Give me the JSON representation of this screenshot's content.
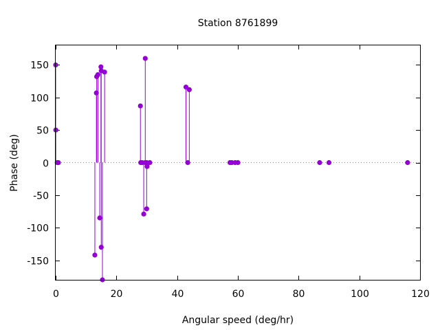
{
  "chart_data": {
    "type": "scatter",
    "style": "impulses-with-points",
    "title": "Station 8761899",
    "xlabel": "Angular speed (deg/hr)",
    "ylabel": "Phase (deg)",
    "xlim": [
      0,
      120
    ],
    "ylim": [
      -180,
      180
    ],
    "xticks": [
      0,
      20,
      40,
      60,
      80,
      100,
      120
    ],
    "yticks": [
      -150,
      -100,
      -50,
      0,
      50,
      100,
      150
    ],
    "grid": false,
    "zero_line": "dotted",
    "color": "#9400d3",
    "points": [
      {
        "x": 0.0,
        "y": 150
      },
      {
        "x": 0.04,
        "y": 50
      },
      {
        "x": 0.5,
        "y": 0
      },
      {
        "x": 0.9,
        "y": 0
      },
      {
        "x": 12.9,
        "y": -142
      },
      {
        "x": 13.4,
        "y": 107
      },
      {
        "x": 13.5,
        "y": 132
      },
      {
        "x": 13.9,
        "y": 135
      },
      {
        "x": 14.5,
        "y": -85
      },
      {
        "x": 14.9,
        "y": 147
      },
      {
        "x": 15.0,
        "y": -130
      },
      {
        "x": 15.0,
        "y": 141
      },
      {
        "x": 15.4,
        "y": -180
      },
      {
        "x": 16.1,
        "y": 139
      },
      {
        "x": 27.9,
        "y": 87
      },
      {
        "x": 28.0,
        "y": 0
      },
      {
        "x": 28.5,
        "y": 0
      },
      {
        "x": 29.0,
        "y": -79
      },
      {
        "x": 29.5,
        "y": 0
      },
      {
        "x": 29.5,
        "y": 160
      },
      {
        "x": 29.96,
        "y": -71
      },
      {
        "x": 30.0,
        "y": 0
      },
      {
        "x": 30.1,
        "y": -6
      },
      {
        "x": 31.0,
        "y": 0
      },
      {
        "x": 42.9,
        "y": 116
      },
      {
        "x": 43.5,
        "y": 0
      },
      {
        "x": 44.0,
        "y": 112
      },
      {
        "x": 57.4,
        "y": 0
      },
      {
        "x": 58.0,
        "y": 0
      },
      {
        "x": 59.1,
        "y": 0
      },
      {
        "x": 60.0,
        "y": 0
      },
      {
        "x": 86.95,
        "y": 0
      },
      {
        "x": 90.0,
        "y": 0
      },
      {
        "x": 115.9,
        "y": 0
      }
    ]
  }
}
